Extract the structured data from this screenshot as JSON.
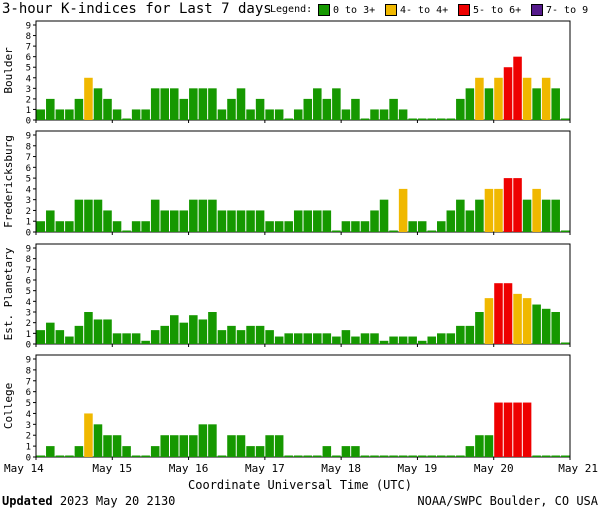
{
  "title": "3-hour K-indices for Last 7 days",
  "legend": {
    "label": "Legend:",
    "items": [
      {
        "label": "0 to 3+",
        "color": "#169800"
      },
      {
        "label": "4- to 4+",
        "color": "#f0b800"
      },
      {
        "label": "5- to 6+",
        "color": "#ee0000"
      },
      {
        "label": "7- to 9",
        "color": "#551a8b"
      }
    ]
  },
  "x_axis_title": "Coordinate Universal Time (UTC)",
  "footer": {
    "updated_label": "Updated",
    "updated_value": "2023 May 20 2130",
    "credit": "NOAA/SWPC Boulder, CO USA"
  },
  "chart_data": [
    {
      "type": "bar",
      "ylabel": "Boulder",
      "ylim": [
        0,
        9
      ],
      "yticks": [
        "0",
        "1",
        "2",
        "3",
        "4",
        "5",
        "6",
        "7",
        "8",
        "9"
      ],
      "xticks": [
        "May 14",
        "May 15",
        "May 16",
        "May 17",
        "May 18",
        "May 19",
        "May 20",
        "May 21"
      ],
      "values": [
        1,
        2,
        1,
        1,
        2,
        4,
        3,
        2,
        1,
        0,
        1,
        1,
        3,
        3,
        3,
        2,
        3,
        3,
        3,
        1,
        2,
        3,
        1,
        2,
        1,
        1,
        0,
        1,
        2,
        3,
        2,
        3,
        1,
        2,
        0,
        1,
        1,
        2,
        1,
        0,
        0,
        0,
        0,
        0,
        2,
        3,
        4,
        3,
        4,
        5,
        6,
        4,
        3,
        4,
        3,
        0
      ]
    },
    {
      "type": "bar",
      "ylabel": "Fredericksburg",
      "ylim": [
        0,
        9
      ],
      "yticks": [
        "0",
        "1",
        "2",
        "3",
        "4",
        "5",
        "6",
        "7",
        "8",
        "9"
      ],
      "xticks": [
        "May 14",
        "May 15",
        "May 16",
        "May 17",
        "May 18",
        "May 19",
        "May 20",
        "May 21"
      ],
      "values": [
        1,
        2,
        1,
        1,
        3,
        3,
        3,
        2,
        1,
        0,
        1,
        1,
        3,
        2,
        2,
        2,
        3,
        3,
        3,
        2,
        2,
        2,
        2,
        2,
        1,
        1,
        1,
        2,
        2,
        2,
        2,
        0,
        1,
        1,
        1,
        2,
        3,
        0,
        4,
        1,
        1,
        0,
        1,
        2,
        3,
        2,
        3,
        4,
        4,
        5,
        5,
        3,
        4,
        3,
        3,
        0
      ]
    },
    {
      "type": "bar",
      "ylabel": "Est. Planetary",
      "ylim": [
        0,
        9
      ],
      "yticks": [
        "0",
        "1",
        "2",
        "3",
        "4",
        "5",
        "6",
        "7",
        "8",
        "9"
      ],
      "xticks": [
        "May 14",
        "May 15",
        "May 16",
        "May 17",
        "May 18",
        "May 19",
        "May 20",
        "May 21"
      ],
      "values": [
        1.3,
        2,
        1.3,
        0.7,
        1.7,
        3,
        2.3,
        2.3,
        1,
        1,
        1,
        0.3,
        1.3,
        1.7,
        2.7,
        2,
        2.7,
        2.3,
        3,
        1.3,
        1.7,
        1.3,
        1.7,
        1.7,
        1.3,
        0.7,
        1,
        1,
        1,
        1,
        1,
        0.7,
        1.3,
        0.7,
        1,
        1,
        0.3,
        0.7,
        0.7,
        0.7,
        0.3,
        0.7,
        1,
        1,
        1.7,
        1.7,
        3,
        4.3,
        5.7,
        5.7,
        4.7,
        4.3,
        3.7,
        3.3,
        3,
        0
      ]
    },
    {
      "type": "bar",
      "ylabel": "College",
      "ylim": [
        0,
        9
      ],
      "yticks": [
        "0",
        "1",
        "2",
        "3",
        "4",
        "5",
        "6",
        "7",
        "8",
        "9"
      ],
      "xticks": [
        "May 14",
        "May 15",
        "May 16",
        "May 17",
        "May 18",
        "May 19",
        "May 20",
        "May 21"
      ],
      "values": [
        0,
        1,
        0,
        0,
        1,
        4,
        3,
        2,
        2,
        1,
        0,
        0,
        1,
        2,
        2,
        2,
        2,
        3,
        3,
        0,
        2,
        2,
        1,
        1,
        2,
        2,
        0,
        0,
        0,
        0,
        1,
        0,
        1,
        1,
        0,
        0,
        0,
        0,
        0,
        0,
        0,
        0,
        0,
        0,
        0,
        1,
        2,
        2,
        5,
        5,
        5,
        5,
        0,
        0,
        0,
        0
      ]
    }
  ]
}
